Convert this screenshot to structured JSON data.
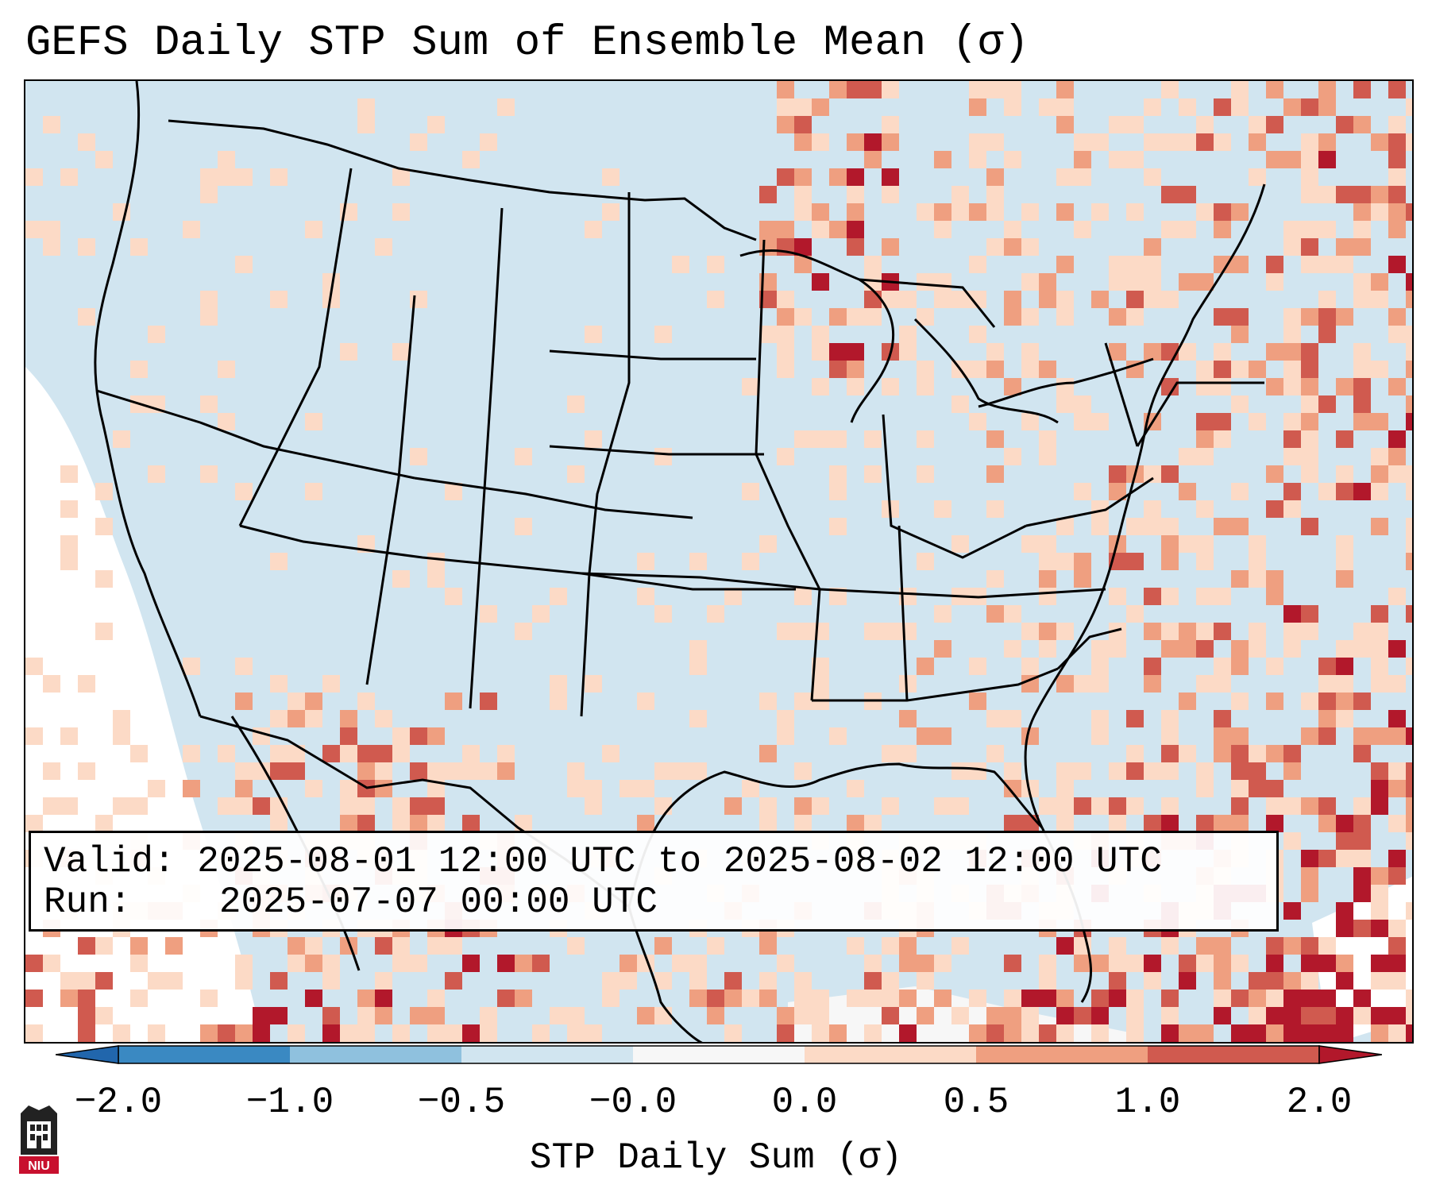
{
  "title": "GEFS Daily STP Sum of Ensemble Mean (σ)",
  "valid": {
    "label": "Valid:",
    "value": "2025-08-01 12:00 UTC to 2025-08-02 12:00 UTC"
  },
  "run": {
    "label": "Run:",
    "value": "2025-07-07 00:00 UTC"
  },
  "colorbar": {
    "label": "STP Daily Sum (σ)",
    "ticks": [
      "−2.0",
      "−1.0",
      "−0.5",
      "−0.0",
      "0.0",
      "0.5",
      "1.0",
      "2.0"
    ],
    "colors": [
      "#3a89c2",
      "#8fc1de",
      "#d1e5f0",
      "#f7f7f7",
      "#fcdac6",
      "#ef9f80",
      "#d05a4f",
      "#b2182b"
    ],
    "extend_low": "#2166ac",
    "extend_high": "#b2182b"
  },
  "map": {
    "region": "Continental United States",
    "background_color": "#d1e5f0"
  },
  "logo": {
    "text": "NIU"
  }
}
